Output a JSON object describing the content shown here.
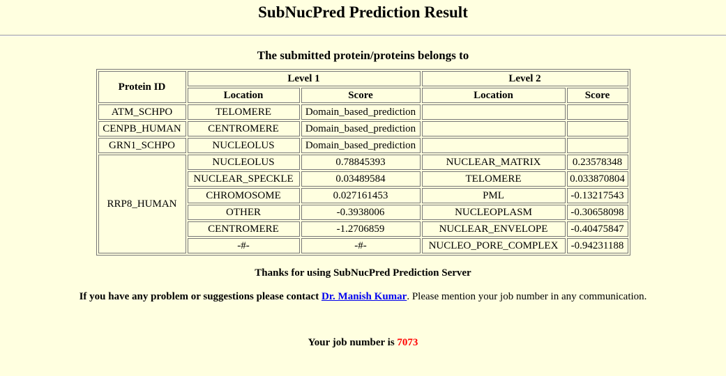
{
  "header": {
    "title": "SubNucPred Prediction Result",
    "subtitle": "The submitted protein/proteins belongs to"
  },
  "table": {
    "headers": {
      "protein_id": "Protein ID",
      "level1": "Level 1",
      "level2": "Level 2",
      "location": "Location",
      "score": "Score"
    },
    "simple_rows": [
      {
        "protein": "ATM_SCHPO",
        "l1_location": "TELOMERE",
        "l1_score": "Domain_based_prediction",
        "l2_location": "",
        "l2_score": ""
      },
      {
        "protein": "CENPB_HUMAN",
        "l1_location": "CENTROMERE",
        "l1_score": "Domain_based_prediction",
        "l2_location": "",
        "l2_score": ""
      },
      {
        "protein": "GRN1_SCHPO",
        "l1_location": "NUCLEOLUS",
        "l1_score": "Domain_based_prediction",
        "l2_location": "",
        "l2_score": ""
      }
    ],
    "group": {
      "protein": "RRP8_HUMAN",
      "rows": [
        {
          "l1_location": "NUCLEOLUS",
          "l1_score": "0.78845393",
          "l2_location": "NUCLEAR_MATRIX",
          "l2_score": "0.23578348"
        },
        {
          "l1_location": "NUCLEAR_SPECKLE",
          "l1_score": "0.03489584",
          "l2_location": "TELOMERE",
          "l2_score": "0.033870804"
        },
        {
          "l1_location": "CHROMOSOME",
          "l1_score": "0.027161453",
          "l2_location": "PML",
          "l2_score": "-0.13217543"
        },
        {
          "l1_location": "OTHER",
          "l1_score": "-0.3938006",
          "l2_location": "NUCLEOPLASM",
          "l2_score": "-0.30658098"
        },
        {
          "l1_location": "CENTROMERE",
          "l1_score": "-1.2706859",
          "l2_location": "NUCLEAR_ENVELOPE",
          "l2_score": "-0.40475847"
        },
        {
          "l1_location": "-#-",
          "l1_score": "-#-",
          "l2_location": "NUCLEO_PORE_COMPLEX",
          "l2_score": "-0.94231188"
        }
      ]
    }
  },
  "footer": {
    "thanks": "Thanks for using SubNucPred Prediction Server",
    "contact_prefix": "If you have any problem or suggestions please contact",
    "contact_link": "Dr. Manish Kumar",
    "contact_suffix": ". Please mention your job number in any communication.",
    "job_label": "Your job number is",
    "job_number": "7073"
  },
  "colors": {
    "background": "#ffffe0",
    "link": "#0000ee",
    "job_number": "#ff0000"
  }
}
